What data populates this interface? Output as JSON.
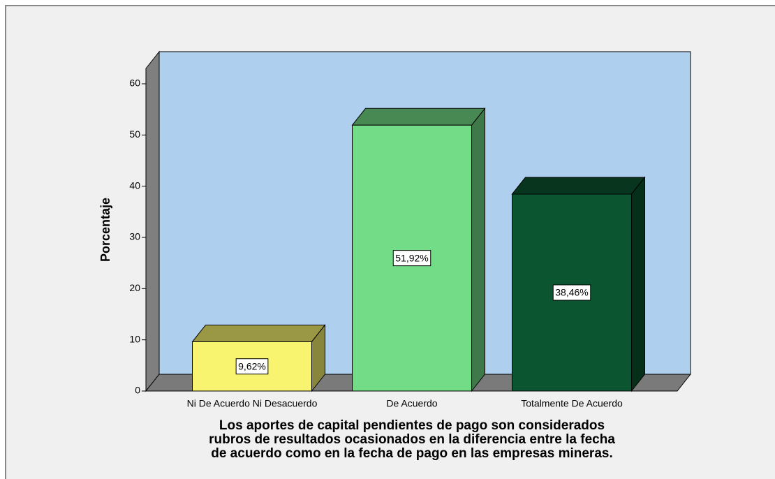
{
  "chart_data": {
    "type": "bar3d",
    "ylabel": "Porcentaje",
    "xlabel": [
      "Los aportes de capital pendientes de pago son considerados",
      "rubros de resultados ocasionados en la diferencia entre la fecha",
      "de acuerdo como en la fecha de pago en las empresas mineras."
    ],
    "categories": [
      "Ni De Acuerdo Ni Desacuerdo",
      "De Acuerdo",
      "Totalmente De Acuerdo"
    ],
    "values": [
      9.62,
      51.92,
      38.46
    ],
    "value_labels": [
      "9,62%",
      "51,92%",
      "38,46%"
    ],
    "colors": [
      "#f8f46f",
      "#72dc86",
      "#0b5630"
    ],
    "ylim": [
      0,
      63
    ],
    "yticks": [
      0,
      10,
      20,
      30,
      40,
      50,
      60
    ]
  }
}
